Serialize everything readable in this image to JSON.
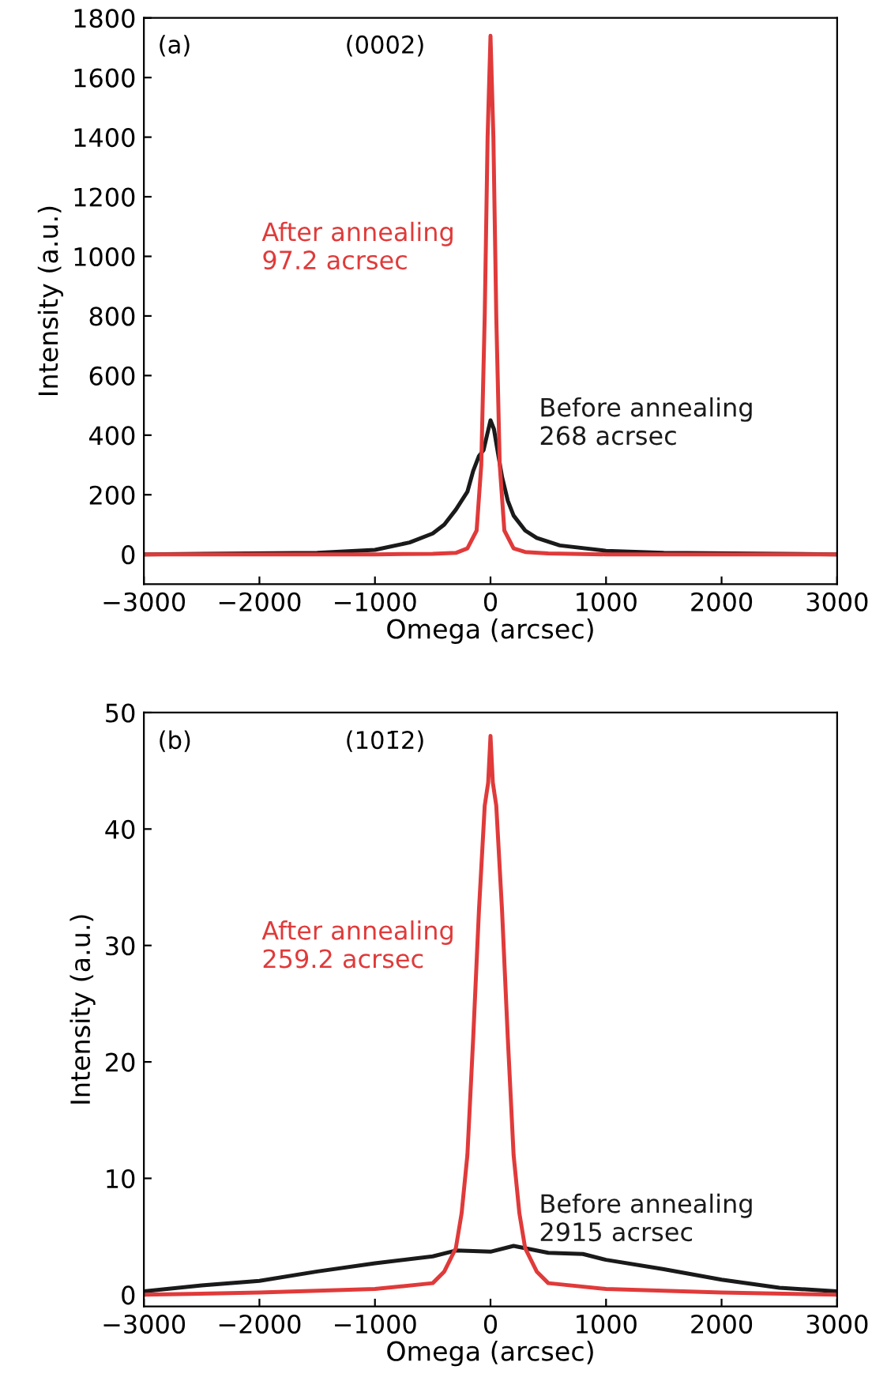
{
  "chart_data": [
    {
      "type": "line",
      "xlabel": "Omega (arcsec)",
      "ylabel": "Intensity (a.u.)",
      "xlim": [
        -3000,
        3000
      ],
      "xticks": [
        {
          "value": -3000,
          "label": "−3000"
        },
        {
          "value": -2000,
          "label": "−2000"
        },
        {
          "value": -1000,
          "label": "−1000"
        },
        0,
        1000,
        2000,
        3000
      ],
      "ylim": [
        -100,
        1800
      ],
      "yticks": [
        0,
        200,
        400,
        600,
        800,
        1000,
        1200,
        1400,
        1600,
        1800
      ],
      "grid": false,
      "legend": false,
      "marker": "none",
      "line_style": "solid",
      "annotations": [
        "(a)",
        "(0002)"
      ],
      "series": [
        {
          "name": "Before annealing\n268 acrsec",
          "color": "#1a1a1a",
          "x": [
            -3000,
            -1500,
            -1000,
            -700,
            -500,
            -400,
            -300,
            -200,
            -150,
            -100,
            -60,
            -30,
            0,
            30,
            60,
            100,
            150,
            200,
            300,
            400,
            600,
            1000,
            1500,
            3000
          ],
          "values": [
            0,
            5,
            15,
            40,
            70,
            100,
            150,
            210,
            280,
            330,
            350,
            400,
            450,
            420,
            350,
            260,
            180,
            130,
            80,
            55,
            30,
            12,
            5,
            0
          ]
        },
        {
          "name": "After annealing\n97.2 acrsec",
          "color": "#e03a3a",
          "x": [
            -3000,
            -1000,
            -500,
            -300,
            -200,
            -120,
            -80,
            -50,
            -25,
            0,
            25,
            50,
            80,
            120,
            200,
            300,
            500,
            1000,
            3000
          ],
          "values": [
            0,
            0,
            2,
            5,
            20,
            80,
            300,
            800,
            1400,
            1740,
            1400,
            800,
            300,
            80,
            20,
            8,
            3,
            0,
            0
          ]
        }
      ]
    },
    {
      "type": "line",
      "xlabel": "Omega (arcsec)",
      "ylabel": "Intensity (a.u.)",
      "xlim": [
        -3000,
        3000
      ],
      "xticks": [
        {
          "value": -3000,
          "label": "−3000"
        },
        {
          "value": -2000,
          "label": "−2000"
        },
        {
          "value": -1000,
          "label": "−1000"
        },
        0,
        1000,
        2000,
        3000
      ],
      "ylim": [
        -1,
        50
      ],
      "yticks": [
        0,
        10,
        20,
        30,
        40,
        50
      ],
      "grid": false,
      "legend": false,
      "marker": "none",
      "line_style": "solid",
      "annotations": [
        "(b)",
        "(101̄2)"
      ],
      "series": [
        {
          "name": "Before annealing\n2915 acrsec",
          "color": "#1a1a1a",
          "x": [
            -3000,
            -2500,
            -2000,
            -1500,
            -1000,
            -500,
            -300,
            0,
            200,
            500,
            800,
            1000,
            1500,
            2000,
            2500,
            3000
          ],
          "values": [
            0.3,
            0.8,
            1.2,
            2.0,
            2.7,
            3.3,
            3.8,
            3.7,
            4.2,
            3.6,
            3.5,
            3.0,
            2.2,
            1.3,
            0.6,
            0.3
          ]
        },
        {
          "name": "After annealing\n259.2 acrsec",
          "color": "#e03a3a",
          "x": [
            -3000,
            -2000,
            -1000,
            -500,
            -400,
            -300,
            -250,
            -200,
            -150,
            -100,
            -50,
            -20,
            0,
            20,
            50,
            100,
            150,
            200,
            250,
            300,
            400,
            500,
            1000,
            2000,
            3000
          ],
          "values": [
            0,
            0.2,
            0.5,
            1,
            2,
            4,
            7,
            12,
            22,
            33,
            42,
            44,
            48,
            44,
            42,
            33,
            22,
            12,
            7,
            4,
            2,
            1,
            0.5,
            0.2,
            0
          ]
        }
      ]
    }
  ]
}
